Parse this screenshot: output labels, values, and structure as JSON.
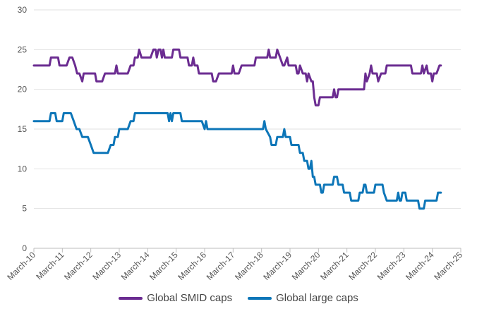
{
  "chart_data": {
    "type": "line",
    "title": "",
    "xlabel": "",
    "ylabel": "",
    "ylim": [
      0,
      30
    ],
    "y_ticks": [
      0,
      5,
      10,
      15,
      20,
      25,
      30
    ],
    "x_range": [
      0,
      15
    ],
    "grid": "horizontal",
    "legend_position": "bottom-center",
    "x_tick_labels": [
      "March-10",
      "March-11",
      "March-12",
      "March-13",
      "March-14",
      "March-15",
      "March-16",
      "March-17",
      "March-18",
      "March-19",
      "March-20",
      "March-21",
      "March-22",
      "March-23",
      "March-24",
      "March-25"
    ],
    "series": [
      {
        "name": "Global SMID caps",
        "color": "#6b2c91",
        "points": [
          [
            0.0,
            23
          ],
          [
            0.55,
            23
          ],
          [
            0.6,
            24
          ],
          [
            0.85,
            24
          ],
          [
            0.9,
            23
          ],
          [
            1.15,
            23
          ],
          [
            1.25,
            24
          ],
          [
            1.35,
            24
          ],
          [
            1.45,
            23
          ],
          [
            1.52,
            22
          ],
          [
            1.6,
            22
          ],
          [
            1.7,
            21
          ],
          [
            1.75,
            22
          ],
          [
            2.15,
            22
          ],
          [
            2.2,
            21
          ],
          [
            2.4,
            21
          ],
          [
            2.5,
            22
          ],
          [
            2.85,
            22
          ],
          [
            2.9,
            23
          ],
          [
            2.95,
            22
          ],
          [
            3.3,
            22
          ],
          [
            3.4,
            23
          ],
          [
            3.5,
            23
          ],
          [
            3.55,
            24
          ],
          [
            3.65,
            24
          ],
          [
            3.7,
            25
          ],
          [
            3.78,
            24
          ],
          [
            4.1,
            24
          ],
          [
            4.2,
            25
          ],
          [
            4.28,
            25
          ],
          [
            4.32,
            24
          ],
          [
            4.38,
            25
          ],
          [
            4.45,
            25
          ],
          [
            4.5,
            24
          ],
          [
            4.55,
            25
          ],
          [
            4.6,
            24
          ],
          [
            4.85,
            24
          ],
          [
            4.9,
            25
          ],
          [
            5.1,
            25
          ],
          [
            5.15,
            24
          ],
          [
            5.4,
            24
          ],
          [
            5.45,
            23
          ],
          [
            5.55,
            23
          ],
          [
            5.6,
            24
          ],
          [
            5.65,
            23
          ],
          [
            5.75,
            23
          ],
          [
            5.8,
            22
          ],
          [
            6.25,
            22
          ],
          [
            6.3,
            21
          ],
          [
            6.4,
            21
          ],
          [
            6.5,
            22
          ],
          [
            6.95,
            22
          ],
          [
            7.0,
            23
          ],
          [
            7.05,
            22
          ],
          [
            7.2,
            22
          ],
          [
            7.3,
            23
          ],
          [
            7.75,
            23
          ],
          [
            7.8,
            24
          ],
          [
            8.2,
            24
          ],
          [
            8.25,
            25
          ],
          [
            8.3,
            24
          ],
          [
            8.5,
            24
          ],
          [
            8.55,
            25
          ],
          [
            8.65,
            24
          ],
          [
            8.75,
            23
          ],
          [
            8.8,
            23
          ],
          [
            8.9,
            24
          ],
          [
            8.95,
            23
          ],
          [
            9.2,
            23
          ],
          [
            9.25,
            22
          ],
          [
            9.3,
            22
          ],
          [
            9.35,
            23
          ],
          [
            9.45,
            22
          ],
          [
            9.55,
            22
          ],
          [
            9.6,
            21
          ],
          [
            9.65,
            22
          ],
          [
            9.75,
            21
          ],
          [
            9.8,
            21
          ],
          [
            9.85,
            19
          ],
          [
            9.9,
            18
          ],
          [
            10.0,
            18
          ],
          [
            10.05,
            19
          ],
          [
            10.5,
            19
          ],
          [
            10.55,
            20
          ],
          [
            10.6,
            19
          ],
          [
            10.65,
            19
          ],
          [
            10.7,
            20
          ],
          [
            11.6,
            20
          ],
          [
            11.65,
            22
          ],
          [
            11.7,
            21
          ],
          [
            11.8,
            22
          ],
          [
            11.85,
            23
          ],
          [
            11.9,
            22
          ],
          [
            12.05,
            22
          ],
          [
            12.1,
            21
          ],
          [
            12.2,
            22
          ],
          [
            12.35,
            22
          ],
          [
            12.4,
            23
          ],
          [
            13.25,
            23
          ],
          [
            13.3,
            22
          ],
          [
            13.6,
            22
          ],
          [
            13.65,
            23
          ],
          [
            13.7,
            22
          ],
          [
            13.8,
            23
          ],
          [
            13.85,
            22
          ],
          [
            13.95,
            22
          ],
          [
            14.0,
            21
          ],
          [
            14.05,
            22
          ],
          [
            14.15,
            22
          ],
          [
            14.25,
            23
          ],
          [
            14.3,
            23
          ]
        ]
      },
      {
        "name": "Global large caps",
        "color": "#0d76b8",
        "points": [
          [
            0.0,
            16
          ],
          [
            0.55,
            16
          ],
          [
            0.6,
            17
          ],
          [
            0.75,
            17
          ],
          [
            0.8,
            16
          ],
          [
            1.0,
            16
          ],
          [
            1.05,
            17
          ],
          [
            1.3,
            17
          ],
          [
            1.4,
            16
          ],
          [
            1.5,
            15
          ],
          [
            1.6,
            15
          ],
          [
            1.7,
            14
          ],
          [
            1.9,
            14
          ],
          [
            2.0,
            13
          ],
          [
            2.1,
            12
          ],
          [
            2.6,
            12
          ],
          [
            2.7,
            13
          ],
          [
            2.8,
            13
          ],
          [
            2.85,
            14
          ],
          [
            2.95,
            14
          ],
          [
            3.0,
            15
          ],
          [
            3.3,
            15
          ],
          [
            3.4,
            16
          ],
          [
            3.5,
            16
          ],
          [
            3.55,
            17
          ],
          [
            4.7,
            17
          ],
          [
            4.75,
            16
          ],
          [
            4.8,
            17
          ],
          [
            4.85,
            16
          ],
          [
            4.9,
            17
          ],
          [
            5.15,
            17
          ],
          [
            5.2,
            16
          ],
          [
            5.9,
            16
          ],
          [
            6.0,
            15
          ],
          [
            6.05,
            16
          ],
          [
            6.1,
            15
          ],
          [
            8.05,
            15
          ],
          [
            8.1,
            16
          ],
          [
            8.15,
            15
          ],
          [
            8.3,
            14
          ],
          [
            8.35,
            13
          ],
          [
            8.5,
            13
          ],
          [
            8.55,
            14
          ],
          [
            8.75,
            14
          ],
          [
            8.8,
            15
          ],
          [
            8.85,
            14
          ],
          [
            9.0,
            14
          ],
          [
            9.05,
            13
          ],
          [
            9.3,
            13
          ],
          [
            9.35,
            12
          ],
          [
            9.45,
            12
          ],
          [
            9.5,
            11
          ],
          [
            9.6,
            11
          ],
          [
            9.65,
            10
          ],
          [
            9.7,
            10
          ],
          [
            9.75,
            11
          ],
          [
            9.8,
            9
          ],
          [
            9.85,
            9
          ],
          [
            9.9,
            8
          ],
          [
            10.05,
            8
          ],
          [
            10.1,
            7
          ],
          [
            10.15,
            7
          ],
          [
            10.2,
            8
          ],
          [
            10.5,
            8
          ],
          [
            10.55,
            9
          ],
          [
            10.65,
            9
          ],
          [
            10.7,
            8
          ],
          [
            10.85,
            8
          ],
          [
            10.9,
            7
          ],
          [
            11.1,
            7
          ],
          [
            11.15,
            6
          ],
          [
            11.4,
            6
          ],
          [
            11.45,
            7
          ],
          [
            11.55,
            7
          ],
          [
            11.6,
            8
          ],
          [
            11.65,
            8
          ],
          [
            11.7,
            7
          ],
          [
            11.95,
            7
          ],
          [
            12.0,
            8
          ],
          [
            12.25,
            8
          ],
          [
            12.3,
            7
          ],
          [
            12.4,
            6
          ],
          [
            12.75,
            6
          ],
          [
            12.8,
            7
          ],
          [
            12.85,
            6
          ],
          [
            12.9,
            6
          ],
          [
            12.95,
            7
          ],
          [
            13.05,
            7
          ],
          [
            13.1,
            6
          ],
          [
            13.5,
            6
          ],
          [
            13.55,
            5
          ],
          [
            13.7,
            5
          ],
          [
            13.75,
            6
          ],
          [
            14.15,
            6
          ],
          [
            14.2,
            7
          ],
          [
            14.3,
            7
          ]
        ]
      }
    ]
  }
}
